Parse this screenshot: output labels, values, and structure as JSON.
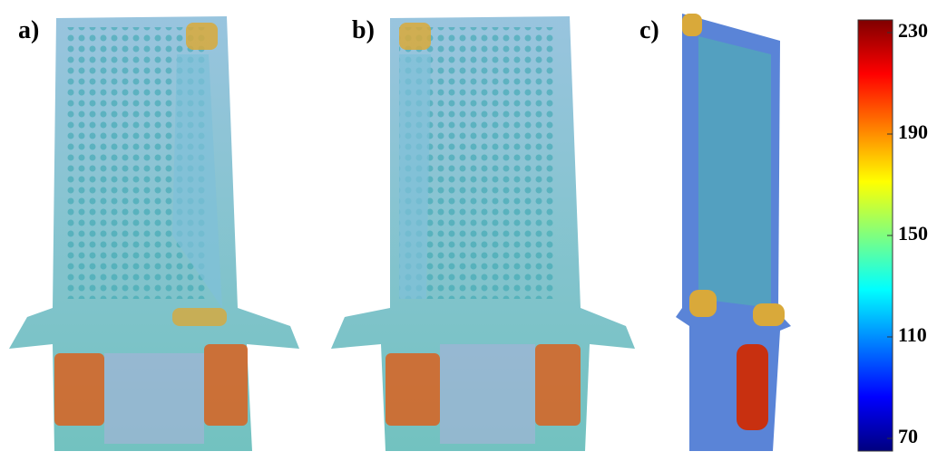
{
  "panels": [
    {
      "label": "a)"
    },
    {
      "label": "b)"
    },
    {
      "label": "c)"
    }
  ],
  "colorbar": {
    "lim": [
      65,
      235
    ],
    "ticks": [
      70,
      110,
      150,
      190,
      230
    ],
    "colors": [
      "#00007f",
      "#0000ff",
      "#007fff",
      "#00ffff",
      "#7fff7f",
      "#ffff00",
      "#ff7f00",
      "#ff0000",
      "#7f0000"
    ]
  }
}
